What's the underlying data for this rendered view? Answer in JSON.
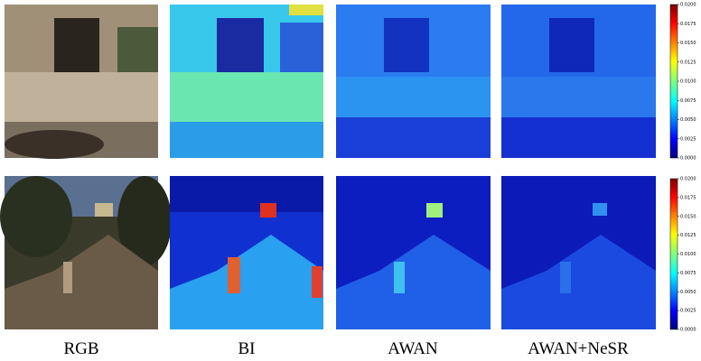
{
  "columns": [
    "RGB",
    "BI",
    "AWAN",
    "AWAN+NeSR"
  ],
  "colorbars": [
    {
      "ticks": [
        "0.0200",
        "0.0175",
        "0.0150",
        "0.0125",
        "0.0100",
        "0.0075",
        "0.0050",
        "0.0025",
        "0.0000"
      ]
    },
    {
      "ticks": [
        "0.0200",
        "0.0175",
        "0.0150",
        "0.0125",
        "0.0100",
        "0.0075",
        "0.0050",
        "0.0025",
        "0.0000"
      ]
    }
  ]
}
